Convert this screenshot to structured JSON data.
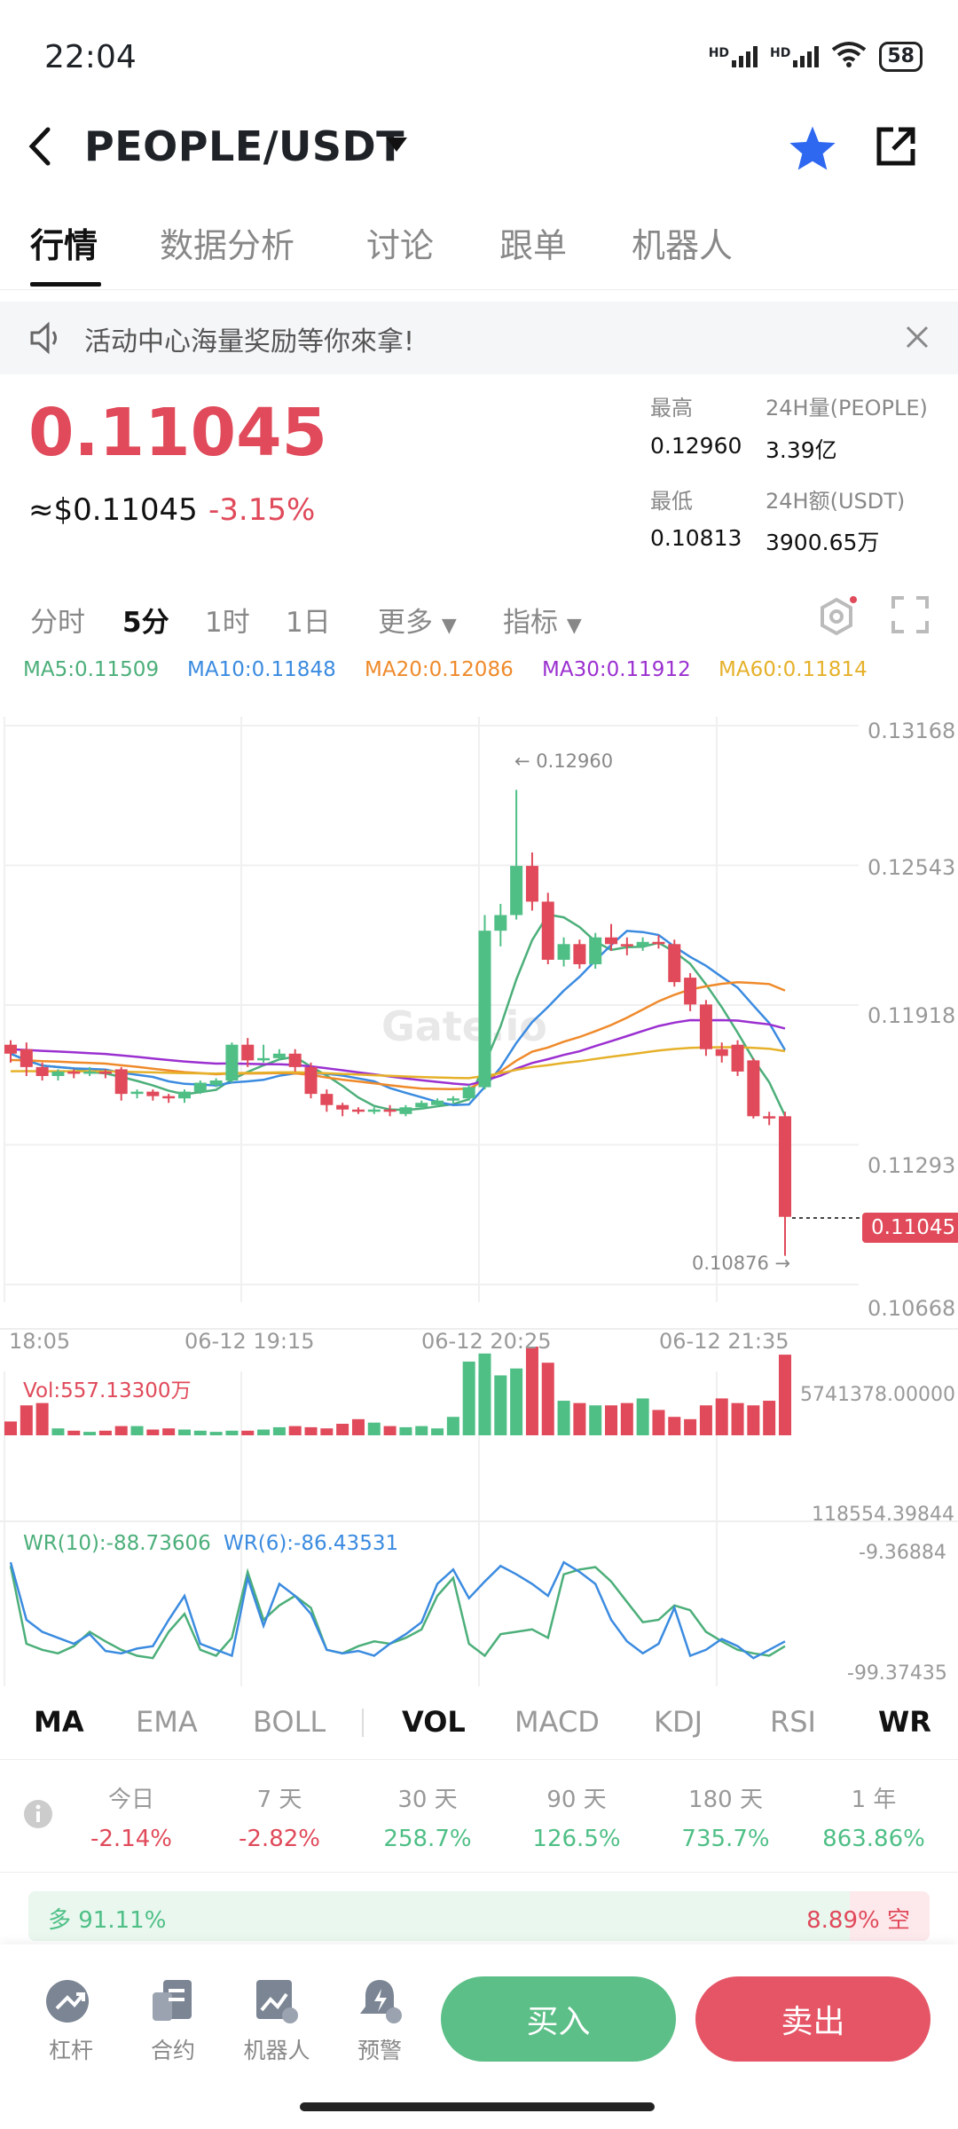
{
  "status": {
    "time": "22:04",
    "net1": "HD",
    "net2": "HD",
    "wifi_sub": "6",
    "battery": "58"
  },
  "header": {
    "title": "PEOPLE/USDT"
  },
  "tabs": [
    "行情",
    "数据分析",
    "讨论",
    "跟单",
    "机器人"
  ],
  "notice": {
    "text": "活动中心海量奖励等你來拿!"
  },
  "price": {
    "last": "0.11045",
    "usd": "≈$0.11045",
    "change": "-3.15%"
  },
  "stats": {
    "high_label": "最高",
    "high": "0.12960",
    "vol_label": "24H量(PEOPLE)",
    "vol": "3.39亿",
    "low_label": "最低",
    "low": "0.10813",
    "amt_label": "24H额(USDT)",
    "amt": "3900.65万"
  },
  "timeframes": [
    "分时",
    "5分",
    "1时",
    "1日",
    "更多",
    "指标"
  ],
  "ma": {
    "ma5": "MA5:0.11509",
    "ma10": "MA10:0.11848",
    "ma20": "MA20:0.12086",
    "ma30": "MA30:0.11912",
    "ma60": "MA60:0.11814"
  },
  "colors": {
    "up": "#4fbf86",
    "down": "#e04a5a",
    "ma5": "#4caf7a",
    "ma10": "#3b8be0",
    "ma20": "#ef8a2b",
    "ma30": "#9b30d0",
    "ma60": "#e6b12a",
    "buy": "#5bbf87",
    "sell": "#e55566",
    "star": "#2f68f0"
  },
  "chart_data": {
    "type": "candlestick",
    "price_axis": [
      "0.13168",
      "0.12543",
      "0.11918",
      "0.11293",
      "0.10668"
    ],
    "time_axis": [
      "18:05",
      "06-12 19:15",
      "06-12 20:25",
      "06-12 21:35"
    ],
    "high_annotation": "← 0.12960",
    "low_annotation": "0.10876 →",
    "last_price_tag": "0.11045",
    "watermark": "Gate.io",
    "candles": [
      [
        0.1182,
        0.1178,
        0.1184,
        0.1174
      ],
      [
        0.118,
        0.1172,
        0.1183,
        0.1168
      ],
      [
        0.1172,
        0.1168,
        0.1174,
        0.1166
      ],
      [
        0.1168,
        0.117,
        0.1171,
        0.1166
      ],
      [
        0.117,
        0.1169,
        0.1171,
        0.1167
      ],
      [
        0.1169,
        0.117,
        0.1172,
        0.1168
      ],
      [
        0.117,
        0.1169,
        0.1171,
        0.1167
      ],
      [
        0.1171,
        0.116,
        0.1172,
        0.1157
      ],
      [
        0.116,
        0.1161,
        0.1162,
        0.1158
      ],
      [
        0.1161,
        0.1159,
        0.1162,
        0.1157
      ],
      [
        0.1159,
        0.1158,
        0.116,
        0.1156
      ],
      [
        0.1158,
        0.1161,
        0.1162,
        0.1156
      ],
      [
        0.1161,
        0.1165,
        0.1166,
        0.116
      ],
      [
        0.1164,
        0.1166,
        0.1167,
        0.1163
      ],
      [
        0.1166,
        0.1182,
        0.1183,
        0.1165
      ],
      [
        0.1182,
        0.1175,
        0.1185,
        0.1172
      ],
      [
        0.1175,
        0.1176,
        0.1182,
        0.1174
      ],
      [
        0.1176,
        0.1178,
        0.118,
        0.1175
      ],
      [
        0.1178,
        0.1172,
        0.118,
        0.117
      ],
      [
        0.1172,
        0.116,
        0.1174,
        0.1158
      ],
      [
        0.116,
        0.1155,
        0.1162,
        0.1152
      ],
      [
        0.1155,
        0.1153,
        0.1156,
        0.115
      ],
      [
        0.1153,
        0.1152,
        0.1154,
        0.1151
      ],
      [
        0.1152,
        0.1153,
        0.1154,
        0.1151
      ],
      [
        0.1153,
        0.1152,
        0.1155,
        0.115
      ],
      [
        0.1151,
        0.1154,
        0.1155,
        0.115
      ],
      [
        0.1154,
        0.1156,
        0.1157,
        0.1153
      ],
      [
        0.1155,
        0.1157,
        0.1158,
        0.1154
      ],
      [
        0.1157,
        0.1158,
        0.1159,
        0.1156
      ],
      [
        0.1158,
        0.1163,
        0.1164,
        0.1157
      ],
      [
        0.1163,
        0.1233,
        0.124,
        0.1162
      ],
      [
        0.1233,
        0.124,
        0.1245,
        0.1226
      ],
      [
        0.124,
        0.1262,
        0.1296,
        0.1238
      ],
      [
        0.1262,
        0.1246,
        0.1268,
        0.1242
      ],
      [
        0.1246,
        0.122,
        0.125,
        0.1218
      ],
      [
        0.122,
        0.1227,
        0.123,
        0.1217
      ],
      [
        0.1227,
        0.1218,
        0.1229,
        0.1216
      ],
      [
        0.1218,
        0.123,
        0.1232,
        0.1216
      ],
      [
        0.123,
        0.1227,
        0.1236,
        0.1224
      ],
      [
        0.1227,
        0.1226,
        0.123,
        0.1222
      ],
      [
        0.1226,
        0.1228,
        0.123,
        0.1224
      ],
      [
        0.1228,
        0.1227,
        0.1231,
        0.1225
      ],
      [
        0.1227,
        0.121,
        0.1229,
        0.1208
      ],
      [
        0.1212,
        0.12,
        0.1214,
        0.1197
      ],
      [
        0.12,
        0.118,
        0.1202,
        0.1177
      ],
      [
        0.118,
        0.1177,
        0.1183,
        0.1174
      ],
      [
        0.1182,
        0.117,
        0.1184,
        0.1168
      ],
      [
        0.1175,
        0.115,
        0.1176,
        0.1149
      ],
      [
        0.115,
        0.1149,
        0.1152,
        0.1146
      ],
      [
        0.115,
        0.1105,
        0.1152,
        0.10876
      ]
    ]
  },
  "volume": {
    "label": "Vol:557.13300万",
    "max": "5741378.00000",
    "min": "118554.39844",
    "bars": [
      12,
      26,
      28,
      6,
      4,
      3,
      4,
      8,
      8,
      5,
      6,
      5,
      4,
      3,
      4,
      4,
      5,
      7,
      8,
      7,
      6,
      10,
      14,
      11,
      8,
      7,
      8,
      6,
      16,
      64,
      71,
      52,
      58,
      77,
      63,
      30,
      28,
      26,
      26,
      28,
      32,
      22,
      16,
      14,
      26,
      32,
      28,
      26,
      30,
      70
    ]
  },
  "wr": {
    "wr10": "WR(10):-88.73606",
    "wr6": "WR(6):-86.43531",
    "top": "-9.36884",
    "bottom": "-99.37435",
    "wr10_values": [
      15,
      80,
      85,
      88,
      82,
      70,
      78,
      85,
      90,
      92,
      70,
      55,
      85,
      90,
      75,
      20,
      60,
      48,
      40,
      50,
      85,
      88,
      82,
      78,
      80,
      75,
      68,
      40,
      25,
      80,
      90,
      72,
      70,
      68,
      75,
      22,
      18,
      16,
      28,
      45,
      62,
      60,
      48,
      52,
      70,
      78,
      85,
      88,
      90,
      82
    ],
    "wr6_values": [
      12,
      60,
      70,
      75,
      80,
      72,
      86,
      88,
      84,
      82,
      60,
      40,
      80,
      85,
      90,
      25,
      65,
      30,
      40,
      55,
      85,
      88,
      86,
      90,
      80,
      72,
      62,
      30,
      18,
      42,
      28,
      15,
      22,
      30,
      40,
      12,
      20,
      30,
      60,
      78,
      88,
      80,
      50,
      90,
      85,
      76,
      82,
      92,
      85,
      78
    ]
  },
  "indicators": [
    "MA",
    "EMA",
    "BOLL",
    "VOL",
    "MACD",
    "KDJ",
    "RSI",
    "WR"
  ],
  "performance": [
    {
      "label": "今日",
      "value": "-2.14%"
    },
    {
      "label": "7 天",
      "value": "-2.82%"
    },
    {
      "label": "30 天",
      "value": "258.7%"
    },
    {
      "label": "90 天",
      "value": "126.5%"
    },
    {
      "label": "180 天",
      "value": "735.7%"
    },
    {
      "label": "1 年",
      "value": "863.86%"
    }
  ],
  "sentiment": {
    "long": "多 91.11%",
    "short": "8.89% 空",
    "long_pct": 91.11
  },
  "bottom_nav": [
    "杠杆",
    "合约",
    "机器人",
    "预警"
  ],
  "actions": {
    "buy": "买入",
    "sell": "卖出"
  }
}
